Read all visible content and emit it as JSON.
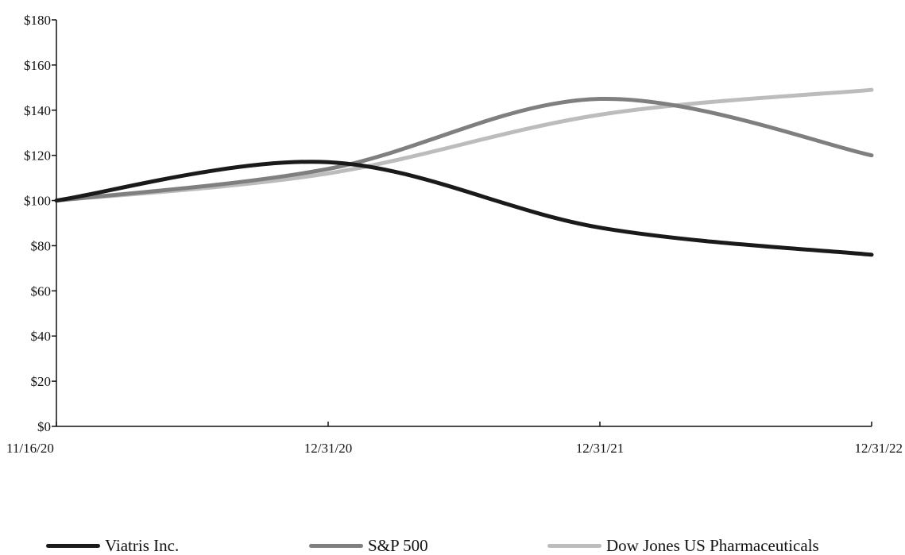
{
  "chart_data": {
    "type": "line",
    "title": "",
    "xlabel": "",
    "ylabel": "",
    "x": [
      "11/16/20",
      "12/31/20",
      "12/31/21",
      "12/31/22"
    ],
    "ylim": [
      0,
      180
    ],
    "y_ticks": [
      "$0",
      "$20",
      "$40",
      "$60",
      "$80",
      "$100",
      "$120",
      "$140",
      "$160",
      "$180"
    ],
    "grid": false,
    "legend_position": "bottom",
    "series": [
      {
        "name": "Viatris Inc.",
        "color": "#1a1a1a",
        "values": [
          100,
          117,
          88,
          76
        ]
      },
      {
        "name": "S&P 500",
        "color": "#7f7f7f",
        "values": [
          100,
          114,
          145,
          120
        ]
      },
      {
        "name": "Dow Jones US Pharmaceuticals",
        "color": "#bcbcbc",
        "values": [
          100,
          112,
          138,
          149
        ]
      }
    ]
  }
}
